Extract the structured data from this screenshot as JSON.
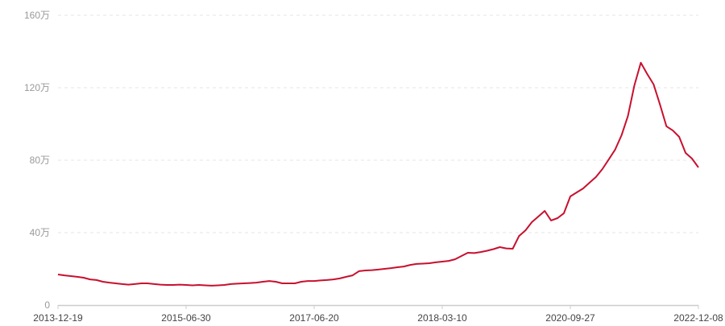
{
  "chart_data": {
    "type": "line",
    "title": "",
    "xlabel": "",
    "ylabel": "",
    "ylim": [
      0,
      160
    ],
    "y_unit_suffix": "万",
    "y_ticks": [
      "0",
      "40万",
      "80万",
      "120万",
      "160万"
    ],
    "y_tick_values": [
      0,
      40,
      80,
      120,
      160
    ],
    "x_tick_labels": [
      "2013-12-19",
      "2015-06-30",
      "2017-06-20",
      "2018-03-10",
      "2020-09-27",
      "2022-12-08"
    ],
    "x_tick_indices": [
      0,
      20,
      40,
      60,
      80,
      100
    ],
    "grid": true,
    "line_color": "#c8102e",
    "series": [
      {
        "values": [
          16.9,
          16.4,
          16.0,
          15.6,
          15.1,
          14.2,
          13.8,
          12.9,
          12.4,
          12.0,
          11.6,
          11.3,
          11.6,
          12.0,
          12.0,
          11.6,
          11.3,
          11.1,
          11.1,
          11.3,
          11.1,
          10.9,
          11.1,
          10.9,
          10.7,
          10.9,
          11.1,
          11.6,
          11.8,
          12.0,
          12.2,
          12.4,
          12.9,
          13.3,
          12.9,
          12.0,
          12.0,
          12.0,
          12.9,
          13.3,
          13.3,
          13.6,
          13.8,
          14.2,
          14.7,
          15.6,
          16.4,
          18.7,
          19.1,
          19.3,
          19.6,
          20.0,
          20.4,
          20.9,
          21.3,
          22.2,
          22.7,
          22.9,
          23.1,
          23.6,
          24.0,
          24.4,
          25.3,
          27.1,
          28.9,
          28.7,
          29.3,
          30.0,
          30.9,
          32.0,
          31.3,
          31.1,
          38.2,
          41.3,
          45.8,
          48.9,
          52.0,
          46.7,
          48.0,
          50.7,
          60.0,
          62.2,
          64.4,
          67.6,
          70.7,
          75.1,
          80.4,
          85.8,
          93.8,
          104.4,
          121.3,
          133.8,
          127.6,
          121.8,
          110.7,
          98.7,
          96.4,
          92.9,
          84.0,
          80.9,
          76.0
        ]
      }
    ]
  }
}
